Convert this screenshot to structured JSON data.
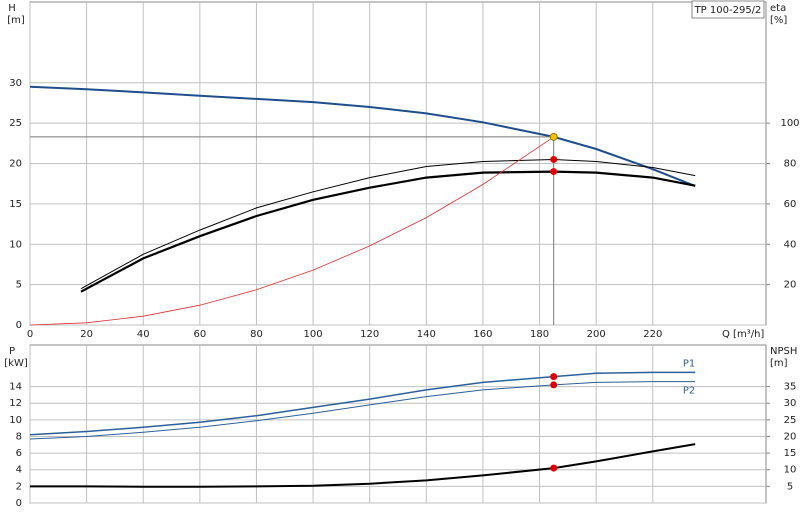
{
  "chart_data": [
    {
      "type": "line",
      "title": "TP 100-295/2",
      "xlabel": "Q [m³/h]",
      "ylabel": "H",
      "yunit": "[m]",
      "y2label": "eta",
      "y2unit": "[%]",
      "xlim": [
        0,
        260
      ],
      "xticks": [
        0,
        20,
        40,
        60,
        80,
        100,
        120,
        140,
        160,
        180,
        200,
        220
      ],
      "ylim": [
        0,
        40
      ],
      "yticks": [
        0,
        5,
        10,
        15,
        20,
        25,
        30
      ],
      "y2lim": [
        0,
        160
      ],
      "y2ticks": [
        20,
        40,
        60,
        80,
        100
      ],
      "grid": true,
      "series": [
        {
          "color": "#1f4e8c",
          "width": 2,
          "x": [
            0,
            20,
            40,
            60,
            80,
            100,
            120,
            140,
            160,
            185,
            200,
            220,
            235
          ],
          "values": [
            29.5,
            29.2,
            28.8,
            28.4,
            28.0,
            27.6,
            27.0,
            26.2,
            25.1,
            23.3,
            21.8,
            19.3,
            17.2
          ]
        },
        {
          "color": "#000000",
          "width": 2.2,
          "axis": "y2",
          "x": [
            18,
            40,
            60,
            80,
            100,
            120,
            140,
            160,
            185,
            200,
            220,
            235
          ],
          "values": [
            16.5,
            33,
            44,
            54,
            62,
            68,
            73,
            75.5,
            76,
            75.5,
            73,
            69
          ]
        },
        {
          "color": "#000000",
          "width": 1,
          "axis": "y2",
          "x": [
            18,
            40,
            60,
            80,
            100,
            120,
            140,
            160,
            185,
            200,
            220,
            235
          ],
          "values": [
            18,
            35,
            47,
            58,
            66,
            73,
            78.5,
            81,
            82,
            81,
            78,
            74
          ]
        },
        {
          "color": "#e03030",
          "width": 0.8,
          "x": [
            0,
            20,
            40,
            60,
            80,
            100,
            120,
            140,
            160,
            185
          ],
          "values": [
            0,
            0.27,
            1.09,
            2.45,
            4.36,
            6.8,
            9.8,
            13.3,
            17.4,
            23.3
          ]
        }
      ],
      "points": [
        {
          "x": 185,
          "y": 23.3,
          "color": "#f5c400",
          "guides": true
        },
        {
          "x": 185,
          "y": 82,
          "axis": "y2",
          "color": "#e00000"
        },
        {
          "x": 185,
          "y": 76,
          "axis": "y2",
          "color": "#e00000"
        }
      ]
    },
    {
      "type": "line",
      "ylabel": "P",
      "yunit": "[kW]",
      "y2label": "NPSH",
      "y2unit": "[m]",
      "xlim": [
        0,
        260
      ],
      "ylim": [
        0,
        19
      ],
      "yticks": [
        0,
        2,
        4,
        6,
        8,
        10,
        12,
        14
      ],
      "y2lim": [
        0,
        47.5
      ],
      "y2ticks": [
        5,
        10,
        15,
        20,
        25,
        30,
        35
      ],
      "grid": true,
      "series": [
        {
          "name": "P1",
          "color": "#2a6099",
          "width": 1.5,
          "x": [
            0,
            20,
            40,
            60,
            80,
            100,
            120,
            140,
            160,
            185,
            200,
            220,
            235
          ],
          "values": [
            8.2,
            8.6,
            9.1,
            9.7,
            10.5,
            11.5,
            12.5,
            13.6,
            14.5,
            15.2,
            15.6,
            15.7,
            15.7
          ]
        },
        {
          "name": "P2",
          "color": "#2a6099",
          "width": 1,
          "x": [
            0,
            20,
            40,
            60,
            80,
            100,
            120,
            140,
            160,
            185,
            200,
            220,
            235
          ],
          "values": [
            7.7,
            8.0,
            8.5,
            9.1,
            9.9,
            10.8,
            11.8,
            12.8,
            13.6,
            14.2,
            14.5,
            14.6,
            14.6
          ]
        },
        {
          "color": "#000000",
          "width": 2,
          "axis": "y2",
          "x": [
            0,
            20,
            40,
            60,
            80,
            100,
            120,
            140,
            160,
            185,
            200,
            220,
            235
          ],
          "values": [
            5,
            5,
            4.9,
            4.9,
            5,
            5.2,
            5.8,
            6.8,
            8.3,
            10.5,
            12.5,
            15.5,
            17.7
          ]
        }
      ],
      "points": [
        {
          "x": 185,
          "y": 15.2,
          "color": "#e00000"
        },
        {
          "x": 185,
          "y": 14.2,
          "color": "#e00000"
        },
        {
          "x": 185,
          "y": 10.5,
          "axis": "y2",
          "color": "#e00000"
        }
      ]
    }
  ]
}
